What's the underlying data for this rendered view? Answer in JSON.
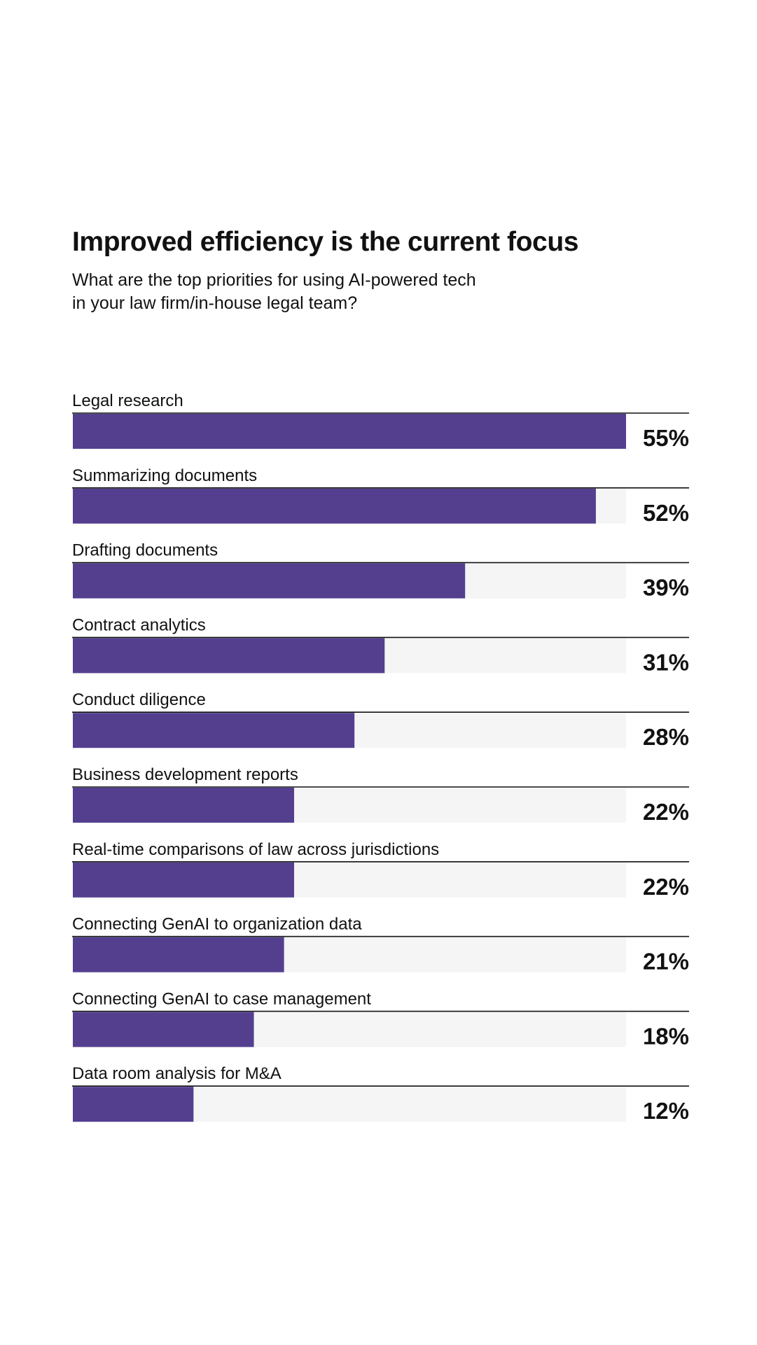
{
  "chart_data": {
    "type": "bar",
    "orientation": "horizontal",
    "title": "Improved efficiency is the current focus",
    "subtitle": [
      "What are the top priorities for using AI-powered tech",
      "in your law firm/in-house legal team?"
    ],
    "categories": [
      "Legal research",
      "Summarizing documents",
      "Drafting documents",
      "Contract analytics",
      "Conduct diligence",
      "Business development reports",
      "Real-time comparisons of law across jurisdictions",
      "Connecting GenAI to organization data",
      "Connecting GenAI to case management",
      "Data room analysis for M&A"
    ],
    "values": [
      55,
      52,
      39,
      31,
      28,
      22,
      22,
      21,
      18,
      12
    ],
    "value_labels": [
      "55%",
      "52%",
      "39%",
      "31%",
      "28%",
      "22%",
      "22%",
      "21%",
      "18%",
      "12%"
    ],
    "xlim": [
      0,
      55
    ],
    "grid": false,
    "legend": "none"
  },
  "colors": {
    "bar": "#543f8f",
    "track": "#f5f5f6",
    "rule": "#111111",
    "text": "#111111"
  }
}
